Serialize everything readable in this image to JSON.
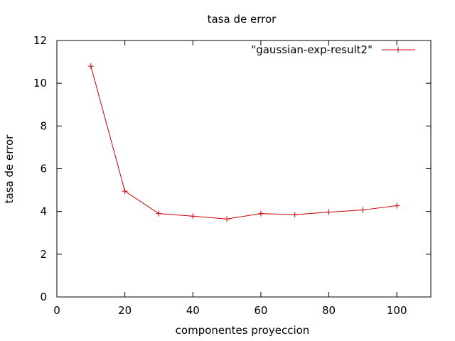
{
  "chart_data": {
    "type": "line",
    "title": "tasa de error",
    "xlabel": "componentes proyeccion",
    "ylabel": "tasa de error",
    "xlim": [
      0,
      110
    ],
    "ylim": [
      0,
      12
    ],
    "xticks": [
      0,
      20,
      40,
      60,
      80,
      100
    ],
    "yticks": [
      0,
      2,
      4,
      6,
      8,
      10,
      12
    ],
    "grid": false,
    "legend_position": "top-right",
    "series": [
      {
        "name": "\"gaussian-exp-result2\"",
        "color": "#cc0000",
        "marker": "plus",
        "x": [
          10,
          20,
          30,
          40,
          50,
          60,
          70,
          80,
          90,
          100
        ],
        "y": [
          10.8,
          4.95,
          3.9,
          3.78,
          3.65,
          3.9,
          3.85,
          3.97,
          4.07,
          4.27
        ]
      }
    ]
  }
}
